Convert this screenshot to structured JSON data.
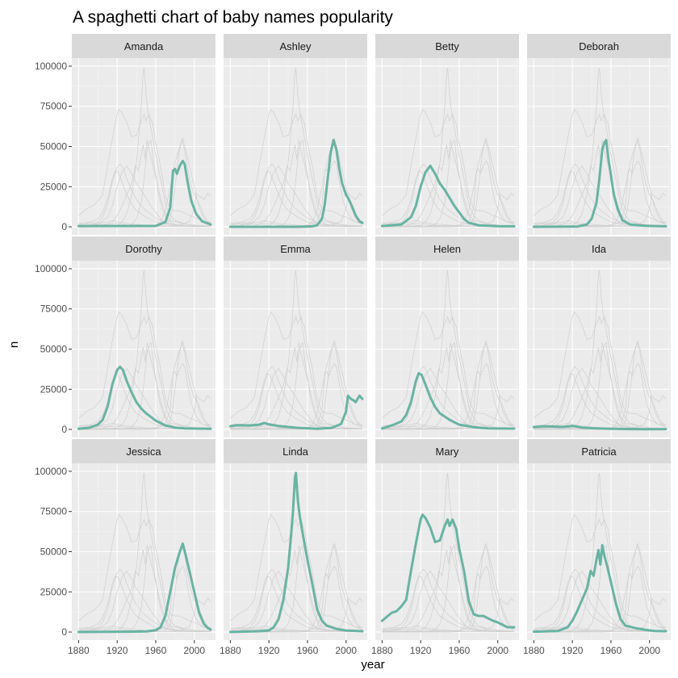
{
  "chart_data": {
    "type": "line",
    "title": "A spaghetti chart of baby names popularity",
    "xlabel": "year",
    "ylabel": "n",
    "xlim": [
      1873,
      2022
    ],
    "ylim": [
      -5000,
      105000
    ],
    "xticks": [
      1880,
      1920,
      1960,
      2000
    ],
    "yticks": [
      0,
      25000,
      50000,
      75000,
      100000
    ],
    "ytick_labels": [
      "0",
      "25000",
      "50000",
      "75000",
      "100000"
    ],
    "layout": "facet grid 3 rows x 4 columns",
    "colors": {
      "highlight": "#69b3a2",
      "background_lines": "#cfcfcf",
      "panel": "#ebebeb",
      "strip": "#d9d9d9",
      "grid": "#ffffff"
    },
    "series": [
      {
        "name": "Amanda",
        "points": [
          [
            1880,
            500
          ],
          [
            1960,
            600
          ],
          [
            1970,
            3000
          ],
          [
            1975,
            12000
          ],
          [
            1978,
            35000
          ],
          [
            1980,
            36000
          ],
          [
            1982,
            33000
          ],
          [
            1985,
            38000
          ],
          [
            1988,
            41000
          ],
          [
            1990,
            39000
          ],
          [
            1993,
            28000
          ],
          [
            1997,
            16000
          ],
          [
            2002,
            8000
          ],
          [
            2008,
            3500
          ],
          [
            2017,
            1500
          ]
        ]
      },
      {
        "name": "Ashley",
        "points": [
          [
            1880,
            0
          ],
          [
            1950,
            0
          ],
          [
            1965,
            300
          ],
          [
            1970,
            1000
          ],
          [
            1975,
            5000
          ],
          [
            1978,
            14000
          ],
          [
            1981,
            30000
          ],
          [
            1984,
            46000
          ],
          [
            1987,
            54000
          ],
          [
            1990,
            48000
          ],
          [
            1993,
            36000
          ],
          [
            1996,
            27000
          ],
          [
            2000,
            20000
          ],
          [
            2003,
            17000
          ],
          [
            2006,
            13000
          ],
          [
            2010,
            7000
          ],
          [
            2014,
            3500
          ],
          [
            2017,
            2500
          ]
        ]
      },
      {
        "name": "Betty",
        "points": [
          [
            1880,
            500
          ],
          [
            1900,
            1500
          ],
          [
            1910,
            6000
          ],
          [
            1915,
            13000
          ],
          [
            1920,
            25000
          ],
          [
            1925,
            34000
          ],
          [
            1930,
            38000
          ],
          [
            1935,
            33000
          ],
          [
            1940,
            27000
          ],
          [
            1945,
            23000
          ],
          [
            1950,
            18000
          ],
          [
            1955,
            13000
          ],
          [
            1960,
            9000
          ],
          [
            1965,
            5000
          ],
          [
            1970,
            2500
          ],
          [
            1980,
            1000
          ],
          [
            2000,
            400
          ],
          [
            2017,
            300
          ]
        ]
      },
      {
        "name": "Deborah",
        "points": [
          [
            1880,
            0
          ],
          [
            1925,
            200
          ],
          [
            1935,
            1500
          ],
          [
            1940,
            5000
          ],
          [
            1945,
            15000
          ],
          [
            1948,
            30000
          ],
          [
            1951,
            48000
          ],
          [
            1953,
            52000
          ],
          [
            1955,
            54000
          ],
          [
            1957,
            44000
          ],
          [
            1960,
            32000
          ],
          [
            1963,
            20000
          ],
          [
            1967,
            11000
          ],
          [
            1972,
            4000
          ],
          [
            1980,
            1500
          ],
          [
            1995,
            700
          ],
          [
            2017,
            300
          ]
        ]
      },
      {
        "name": "Dorothy",
        "points": [
          [
            1880,
            400
          ],
          [
            1890,
            900
          ],
          [
            1900,
            3000
          ],
          [
            1905,
            6000
          ],
          [
            1910,
            14000
          ],
          [
            1915,
            28000
          ],
          [
            1920,
            37000
          ],
          [
            1923,
            39000
          ],
          [
            1926,
            37000
          ],
          [
            1930,
            30000
          ],
          [
            1935,
            23000
          ],
          [
            1940,
            17000
          ],
          [
            1945,
            13000
          ],
          [
            1950,
            10000
          ],
          [
            1960,
            5500
          ],
          [
            1970,
            2500
          ],
          [
            1980,
            1200
          ],
          [
            1990,
            700
          ],
          [
            2017,
            400
          ]
        ]
      },
      {
        "name": "Emma",
        "points": [
          [
            1880,
            2000
          ],
          [
            1885,
            2600
          ],
          [
            1890,
            2700
          ],
          [
            1900,
            2500
          ],
          [
            1910,
            3000
          ],
          [
            1915,
            4000
          ],
          [
            1920,
            3200
          ],
          [
            1930,
            2200
          ],
          [
            1950,
            1000
          ],
          [
            1970,
            400
          ],
          [
            1985,
            1000
          ],
          [
            1995,
            3500
          ],
          [
            2000,
            11000
          ],
          [
            2002,
            21000
          ],
          [
            2005,
            19000
          ],
          [
            2008,
            18000
          ],
          [
            2010,
            17000
          ],
          [
            2014,
            21000
          ],
          [
            2017,
            19000
          ]
        ]
      },
      {
        "name": "Helen",
        "points": [
          [
            1880,
            600
          ],
          [
            1890,
            2500
          ],
          [
            1900,
            5000
          ],
          [
            1905,
            9000
          ],
          [
            1910,
            17000
          ],
          [
            1915,
            30000
          ],
          [
            1918,
            35000
          ],
          [
            1921,
            34000
          ],
          [
            1925,
            28000
          ],
          [
            1930,
            20000
          ],
          [
            1935,
            14000
          ],
          [
            1940,
            10000
          ],
          [
            1950,
            6000
          ],
          [
            1960,
            3000
          ],
          [
            1975,
            1500
          ],
          [
            1990,
            700
          ],
          [
            2017,
            500
          ]
        ]
      },
      {
        "name": "Ida",
        "points": [
          [
            1880,
            1500
          ],
          [
            1890,
            2000
          ],
          [
            1900,
            1800
          ],
          [
            1910,
            1600
          ],
          [
            1920,
            2200
          ],
          [
            1930,
            1200
          ],
          [
            1940,
            800
          ],
          [
            1960,
            400
          ],
          [
            1980,
            200
          ],
          [
            2000,
            100
          ],
          [
            2017,
            200
          ]
        ]
      },
      {
        "name": "Jessica",
        "points": [
          [
            1880,
            0
          ],
          [
            1930,
            200
          ],
          [
            1950,
            400
          ],
          [
            1960,
            1200
          ],
          [
            1965,
            3000
          ],
          [
            1970,
            10000
          ],
          [
            1975,
            25000
          ],
          [
            1980,
            40000
          ],
          [
            1985,
            50000
          ],
          [
            1988,
            55000
          ],
          [
            1991,
            48000
          ],
          [
            1995,
            38000
          ],
          [
            2000,
            25000
          ],
          [
            2005,
            12000
          ],
          [
            2010,
            5000
          ],
          [
            2014,
            2500
          ],
          [
            2017,
            1500
          ]
        ]
      },
      {
        "name": "Linda",
        "points": [
          [
            1880,
            0
          ],
          [
            1910,
            500
          ],
          [
            1920,
            1000
          ],
          [
            1925,
            3000
          ],
          [
            1930,
            8000
          ],
          [
            1935,
            20000
          ],
          [
            1940,
            40000
          ],
          [
            1943,
            60000
          ],
          [
            1945,
            75000
          ],
          [
            1947,
            96000
          ],
          [
            1948,
            99000
          ],
          [
            1950,
            82000
          ],
          [
            1952,
            72000
          ],
          [
            1956,
            58000
          ],
          [
            1960,
            45000
          ],
          [
            1965,
            30000
          ],
          [
            1970,
            14000
          ],
          [
            1975,
            7000
          ],
          [
            1980,
            4000
          ],
          [
            1990,
            2000
          ],
          [
            2000,
            1000
          ],
          [
            2017,
            500
          ]
        ]
      },
      {
        "name": "Mary",
        "points": [
          [
            1880,
            7000
          ],
          [
            1885,
            9500
          ],
          [
            1890,
            12000
          ],
          [
            1895,
            13000
          ],
          [
            1900,
            16000
          ],
          [
            1905,
            20000
          ],
          [
            1910,
            38000
          ],
          [
            1915,
            55000
          ],
          [
            1920,
            70000
          ],
          [
            1922,
            73000
          ],
          [
            1925,
            71000
          ],
          [
            1930,
            65000
          ],
          [
            1935,
            56000
          ],
          [
            1940,
            57000
          ],
          [
            1945,
            66000
          ],
          [
            1948,
            70000
          ],
          [
            1950,
            66000
          ],
          [
            1953,
            70000
          ],
          [
            1957,
            64000
          ],
          [
            1960,
            52000
          ],
          [
            1965,
            38000
          ],
          [
            1970,
            19000
          ],
          [
            1975,
            11000
          ],
          [
            1980,
            10000
          ],
          [
            1985,
            10000
          ],
          [
            1990,
            8500
          ],
          [
            1995,
            7000
          ],
          [
            2000,
            6000
          ],
          [
            2005,
            4500
          ],
          [
            2010,
            3000
          ],
          [
            2017,
            3000
          ]
        ]
      },
      {
        "name": "Patricia",
        "points": [
          [
            1880,
            200
          ],
          [
            1905,
            700
          ],
          [
            1915,
            3000
          ],
          [
            1920,
            7000
          ],
          [
            1925,
            13000
          ],
          [
            1930,
            20000
          ],
          [
            1935,
            27000
          ],
          [
            1939,
            38000
          ],
          [
            1942,
            35000
          ],
          [
            1945,
            45000
          ],
          [
            1947,
            51000
          ],
          [
            1949,
            42000
          ],
          [
            1951,
            54000
          ],
          [
            1953,
            48000
          ],
          [
            1956,
            41000
          ],
          [
            1960,
            31000
          ],
          [
            1965,
            18000
          ],
          [
            1970,
            8000
          ],
          [
            1975,
            4000
          ],
          [
            1985,
            2500
          ],
          [
            1995,
            1500
          ],
          [
            2005,
            700
          ],
          [
            2017,
            500
          ]
        ]
      }
    ]
  }
}
